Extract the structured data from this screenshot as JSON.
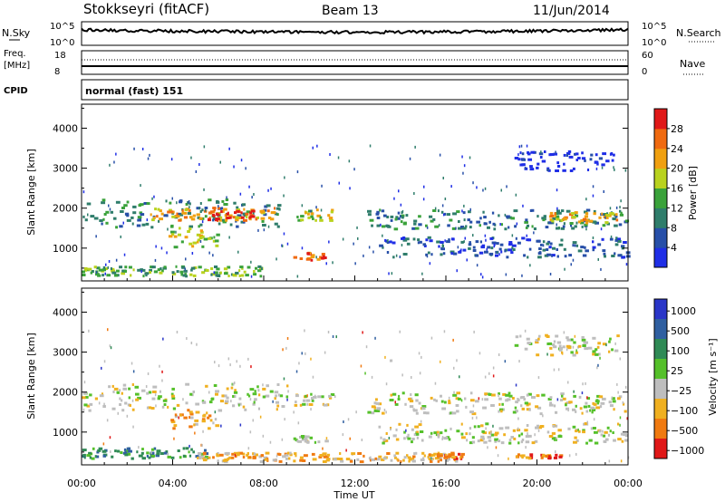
{
  "header": {
    "radar": "Stokkseyri (fitACF)",
    "beam": "Beam 13",
    "date": "11/Jun/2014"
  },
  "panels": {
    "nsky": {
      "label": "N.Sky",
      "tick_top": "10^5",
      "tick_bottom": "10^0",
      "right_label": "N.Search",
      "right_tick_top": "10^5",
      "right_tick_bottom": "10^0"
    },
    "freq": {
      "label": "Freq.",
      "unit": "[MHz]",
      "tick_top": "18",
      "tick_bottom": "8",
      "right_label": "Nave",
      "right_tick_top": "60",
      "right_tick_bottom": "0"
    },
    "cpid": {
      "label": "CPID",
      "value": "normal (fast) 151"
    }
  },
  "colors": {
    "power": [
      "#1f2ee6",
      "#274fa8",
      "#2f7d6b",
      "#3aa23a",
      "#b9d21e",
      "#f0a010",
      "#f06a10",
      "#e01818"
    ],
    "velocity": [
      "#2a36c8",
      "#2f5fa0",
      "#2f8a55",
      "#55c02a",
      "#bebebe",
      "#f0b020",
      "#f07a10",
      "#e01818"
    ],
    "speckle_gray": "#bdbdbd"
  },
  "chart_data": [
    {
      "type": "heatmap",
      "title": "Power",
      "ylabel": "Slant Range [km]",
      "xlabel": "Time UT",
      "xlim": [
        0,
        24
      ],
      "ylim": [
        180,
        4600
      ],
      "y_ticks": [
        1000,
        2000,
        3000,
        4000
      ],
      "x_tick_labels": [
        "00:00",
        "04:00",
        "08:00",
        "12:00",
        "16:00",
        "20:00",
        "00:00"
      ],
      "colorbar": {
        "label": "Power [dB]",
        "ticks": [
          "4",
          "8",
          "12",
          "16",
          "20",
          "24",
          "28"
        ]
      },
      "bands": [
        {
          "t0": 0.0,
          "t1": 8.8,
          "r": 1900,
          "w": 350,
          "level": 2
        },
        {
          "t0": 3.0,
          "t1": 8.5,
          "r": 1880,
          "w": 160,
          "level": 5
        },
        {
          "t0": 5.5,
          "t1": 7.5,
          "r": 1850,
          "w": 120,
          "level": 7
        },
        {
          "t0": 3.8,
          "t1": 6.0,
          "r": 1300,
          "w": 260,
          "level": 4
        },
        {
          "t0": 9.3,
          "t1": 11.0,
          "r": 1850,
          "w": 150,
          "level": 4
        },
        {
          "t0": 12.5,
          "t1": 24.0,
          "r": 1750,
          "w": 240,
          "level": 2
        },
        {
          "t0": 20.5,
          "t1": 23.5,
          "r": 1800,
          "w": 140,
          "level": 5
        },
        {
          "t0": 0.0,
          "t1": 8.0,
          "r": 450,
          "w": 120,
          "level": 3
        },
        {
          "t0": 9.2,
          "t1": 10.6,
          "r": 820,
          "w": 90,
          "level": 6
        },
        {
          "t0": 13.0,
          "t1": 24.0,
          "r": 1050,
          "w": 250,
          "level": 1
        },
        {
          "t0": 19.0,
          "t1": 23.5,
          "r": 3200,
          "w": 250,
          "level": 0
        }
      ]
    },
    {
      "type": "heatmap",
      "title": "Velocity",
      "ylabel": "Slant Range [km]",
      "xlabel": "Time UT",
      "xlim": [
        0,
        24
      ],
      "ylim": [
        180,
        4600
      ],
      "y_ticks": [
        1000,
        2000,
        3000,
        4000
      ],
      "x_tick_labels": [
        "00:00",
        "04:00",
        "08:00",
        "12:00",
        "16:00",
        "20:00",
        "00:00"
      ],
      "colorbar": {
        "label": "Velocity [m s⁻¹]",
        "ticks": [
          "1000",
          "500",
          "100",
          "25",
          "−25",
          "−100",
          "−500",
          "−1000"
        ]
      },
      "bands": [
        {
          "t0": 0.0,
          "t1": 9.0,
          "r": 1900,
          "w": 330,
          "level": 4
        },
        {
          "t0": 3.8,
          "t1": 6.0,
          "r": 1350,
          "w": 260,
          "level": 5
        },
        {
          "t0": 9.3,
          "t1": 11.0,
          "r": 1850,
          "w": 150,
          "level": 4
        },
        {
          "t0": 12.5,
          "t1": 24.0,
          "r": 1750,
          "w": 260,
          "level": 4
        },
        {
          "t0": 0.0,
          "t1": 5.5,
          "r": 500,
          "w": 130,
          "level": 2
        },
        {
          "t0": 5.0,
          "t1": 16.5,
          "r": 400,
          "w": 110,
          "level": 5
        },
        {
          "t0": 15.2,
          "t1": 16.8,
          "r": 420,
          "w": 60,
          "level": 6
        },
        {
          "t0": 19.0,
          "t1": 21.0,
          "r": 420,
          "w": 50,
          "level": 6
        },
        {
          "t0": 9.3,
          "t1": 10.8,
          "r": 850,
          "w": 80,
          "level": 4
        },
        {
          "t0": 13.0,
          "t1": 24.0,
          "r": 1000,
          "w": 250,
          "level": 4
        },
        {
          "t0": 19.0,
          "t1": 23.5,
          "r": 3200,
          "w": 250,
          "level": 4
        }
      ]
    }
  ]
}
